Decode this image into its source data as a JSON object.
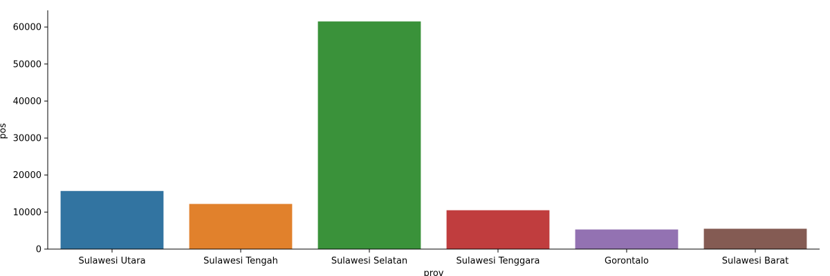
{
  "chart_data": {
    "type": "bar",
    "title": "",
    "xlabel": "prov",
    "ylabel": "pos",
    "categories": [
      "Sulawesi Utara",
      "Sulawesi Tengah",
      "Sulawesi Selatan",
      "Sulawesi Tenggara",
      "Gorontalo",
      "Sulawesi Barat"
    ],
    "values": [
      15700,
      12200,
      61500,
      10500,
      5300,
      5500
    ],
    "colors": [
      "#3274a1",
      "#e1812c",
      "#3a923a",
      "#c03d3e",
      "#9372b2",
      "#845b53"
    ],
    "ylim": [
      0,
      64500
    ],
    "yticks": [
      0,
      10000,
      20000,
      30000,
      40000,
      50000,
      60000
    ],
    "grid": false,
    "legend": "none"
  }
}
